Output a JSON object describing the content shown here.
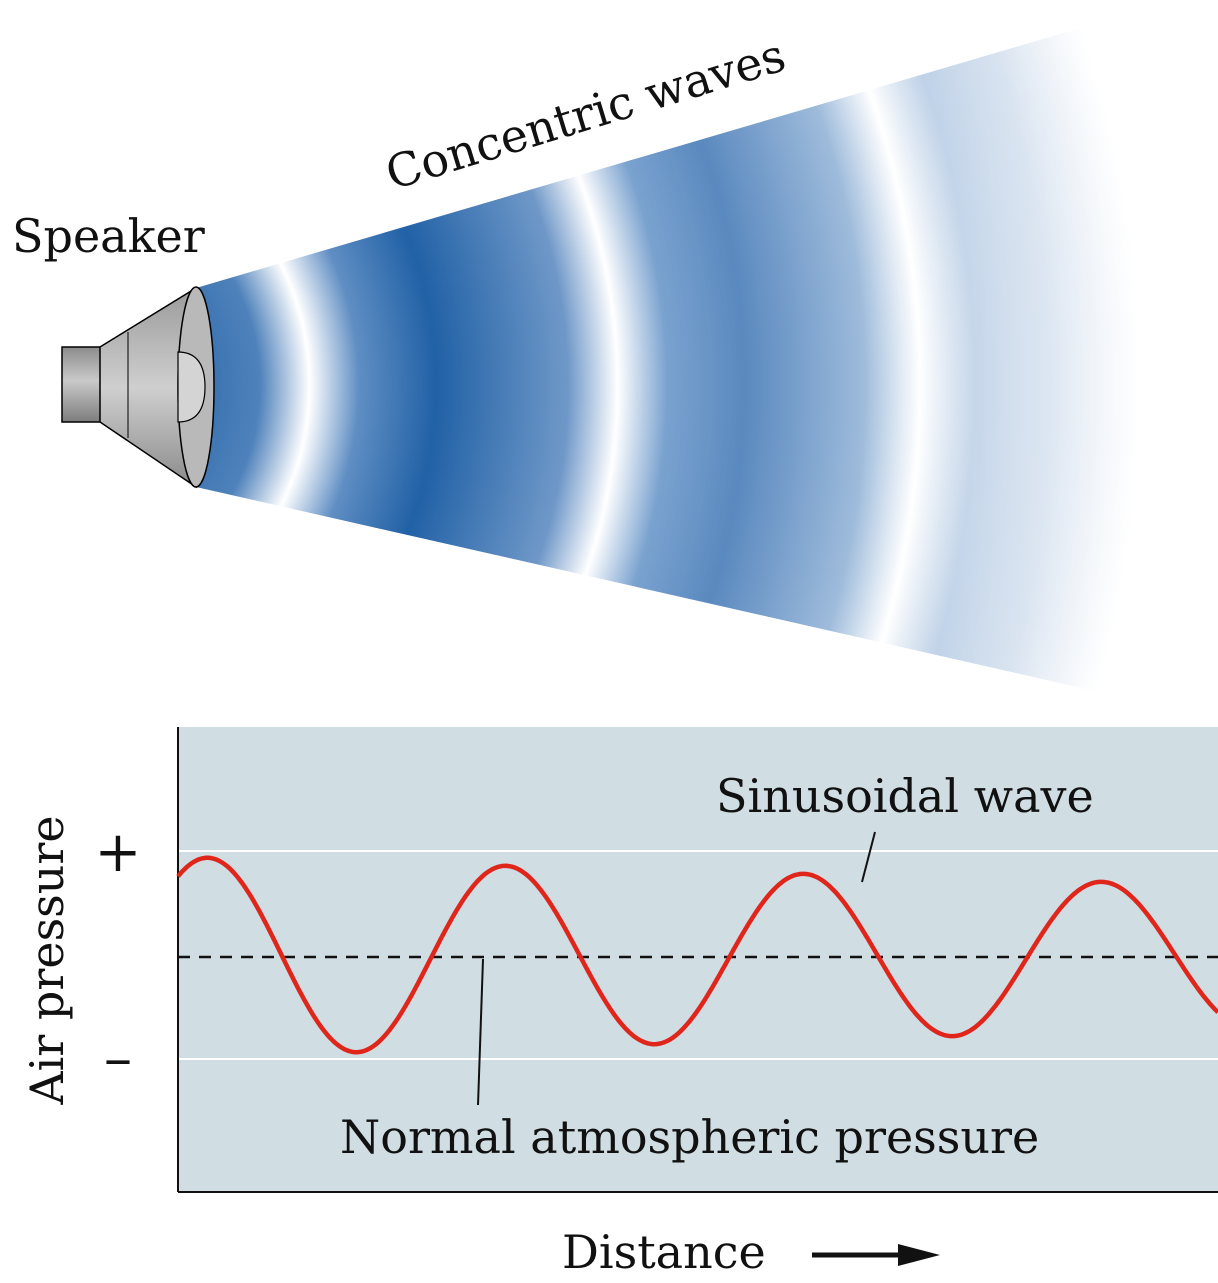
{
  "labels": {
    "speaker": "Speaker",
    "concentric_waves": "Concentric waves",
    "sinusoidal_wave": "Sinusoidal wave",
    "normal_pressure": "Normal atmospheric pressure",
    "y_axis": "Air pressure",
    "plus": "+",
    "minus": "–",
    "x_axis": "Distance"
  },
  "colors": {
    "wave_dark": "#1f5fa3",
    "wave_light": "#ffffff",
    "plot_background": "#d0dde3",
    "sine_curve": "#e0261b",
    "speaker_body": "#a9a9a9"
  }
}
